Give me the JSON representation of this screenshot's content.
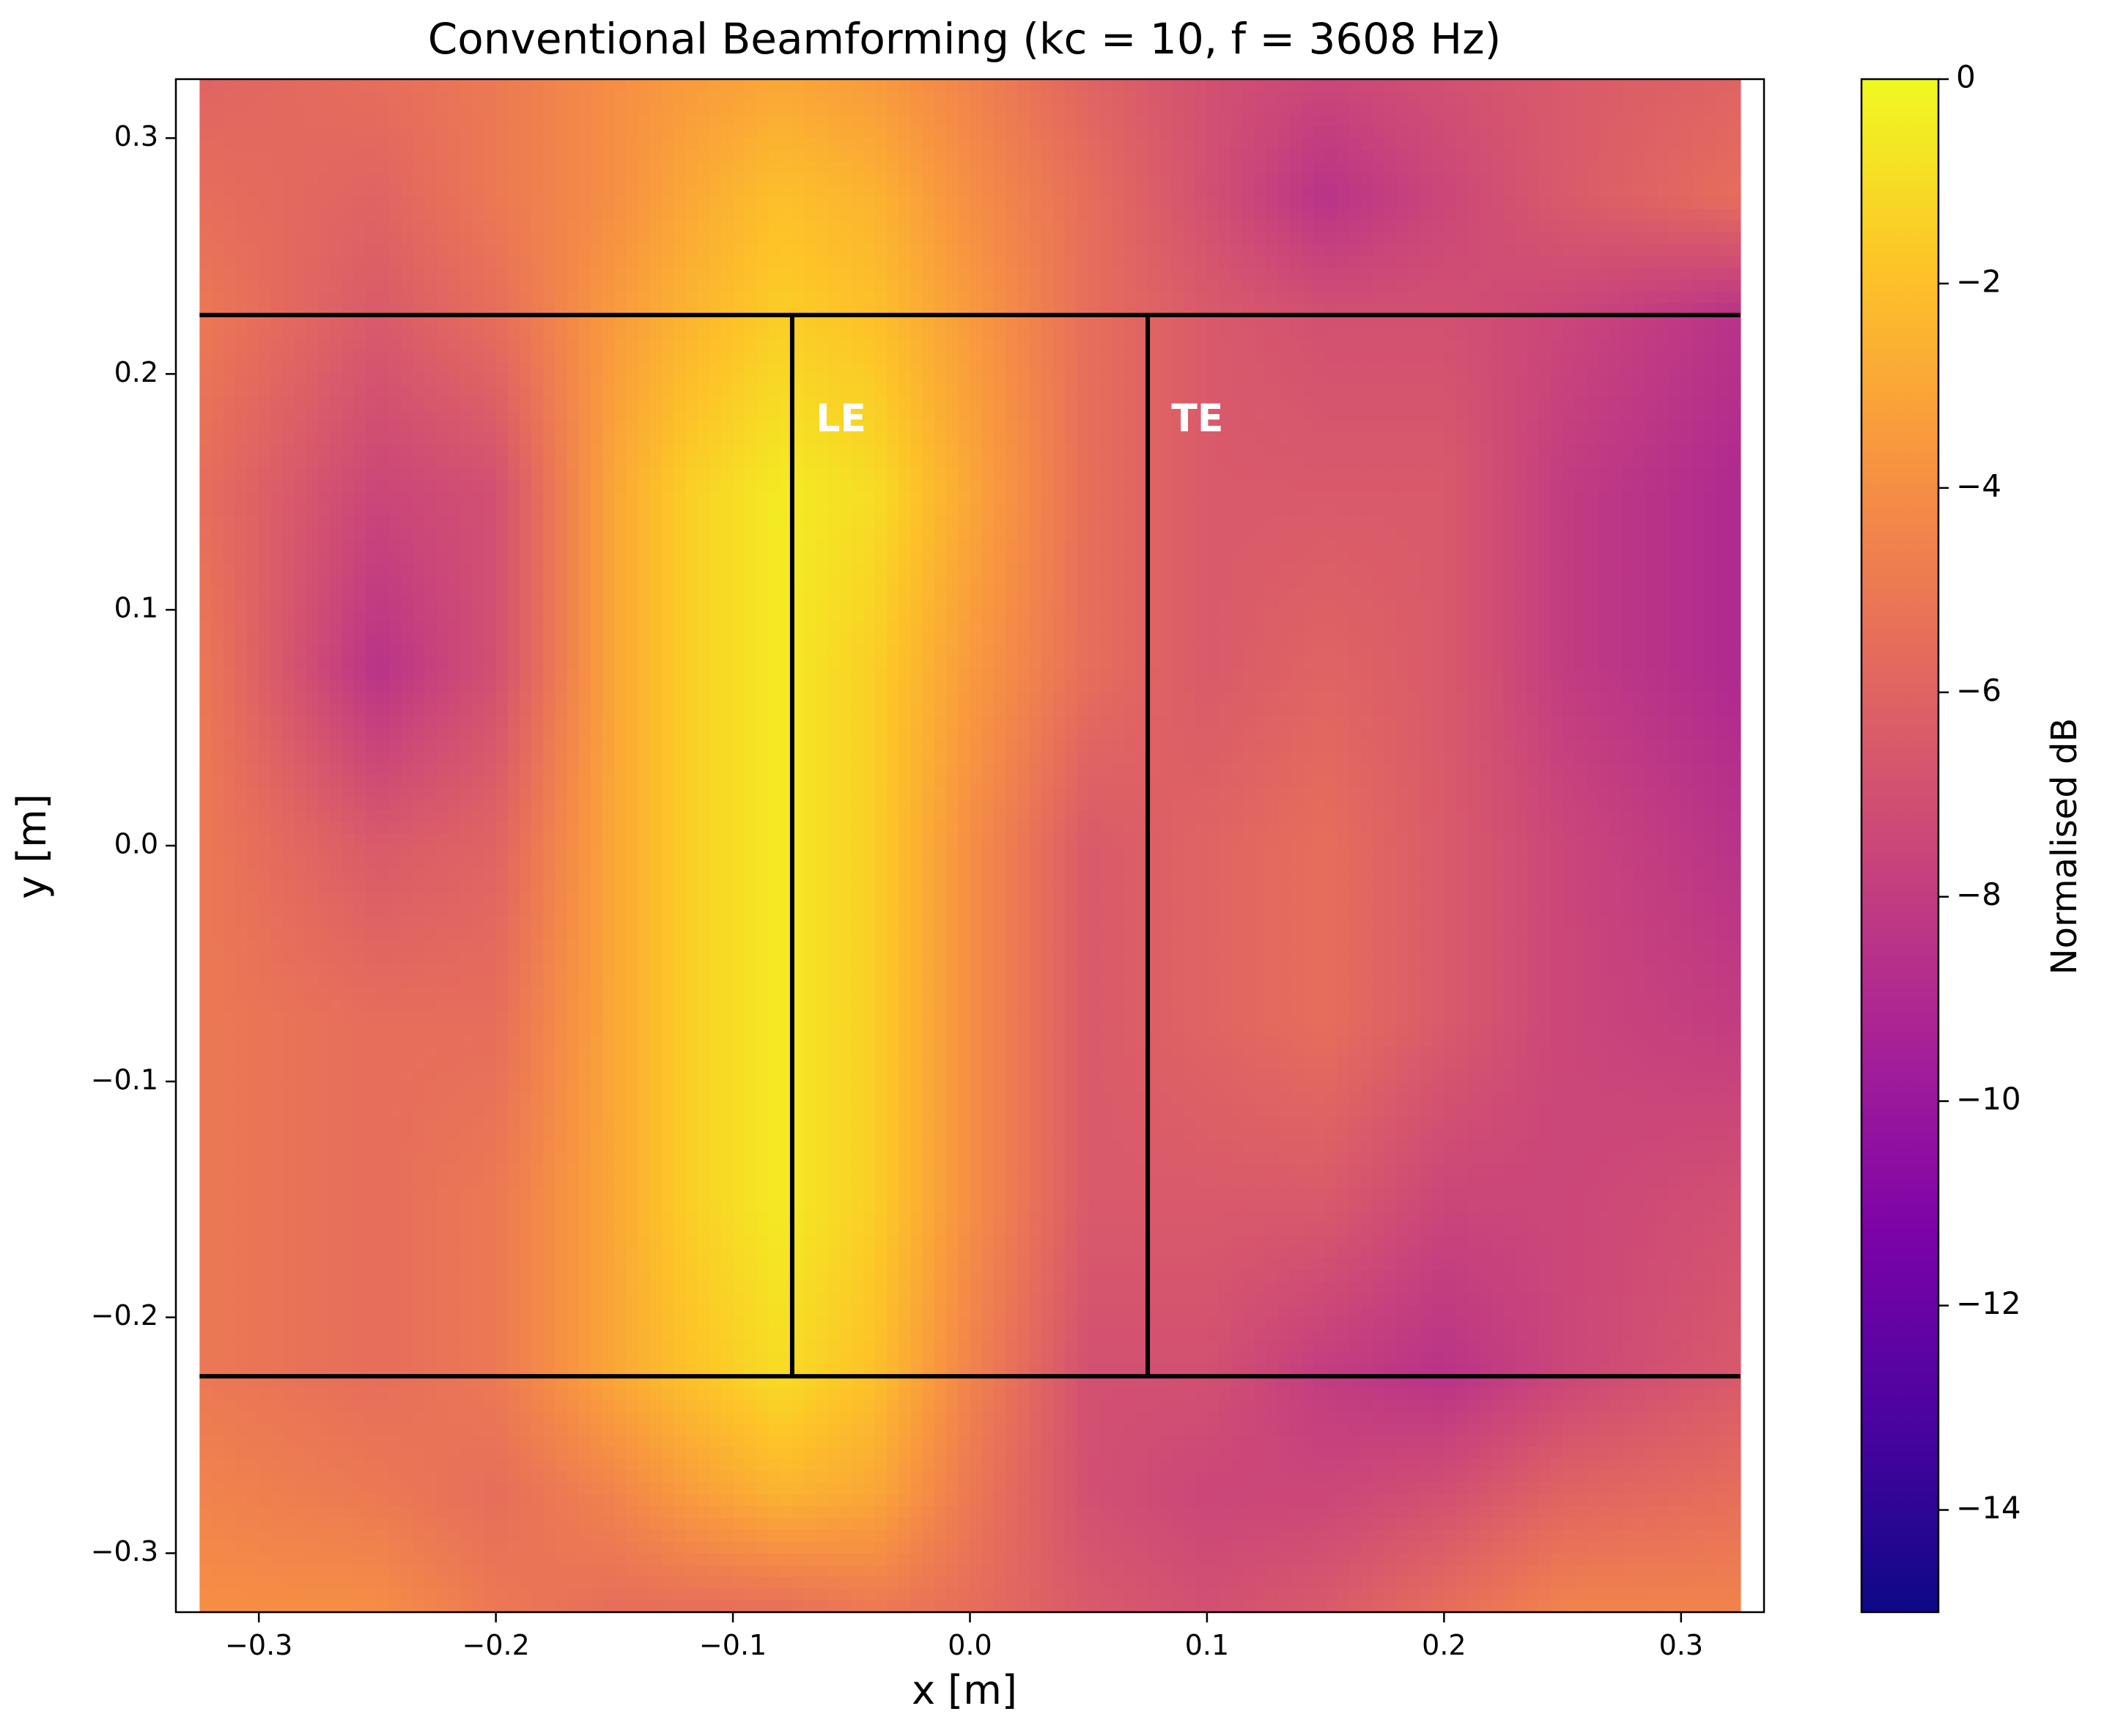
{
  "chart_data": {
    "type": "heatmap",
    "title": "Conventional Beamforming (kc = 10, f = 3608 Hz)",
    "xlabel": "x [m]",
    "ylabel": "y [m]",
    "xlim": [
      -0.335,
      0.335
    ],
    "ylim": [
      -0.325,
      0.325
    ],
    "data_extent": {
      "x": [
        -0.325,
        0.325
      ],
      "y": [
        -0.325,
        0.325
      ]
    },
    "xticks": [
      -0.3,
      -0.2,
      -0.1,
      0.0,
      0.1,
      0.2,
      0.3
    ],
    "xtick_labels": [
      "−0.3",
      "−0.2",
      "−0.1",
      "0.0",
      "0.1",
      "0.2",
      "0.3"
    ],
    "yticks": [
      0.3,
      0.2,
      0.1,
      0.0,
      -0.1,
      -0.2,
      -0.3
    ],
    "ytick_labels": [
      "0.3",
      "0.2",
      "0.1",
      "0.0",
      "−0.1",
      "−0.2",
      "−0.3"
    ],
    "colormap": "plasma",
    "colorbar": {
      "label": "Normalised dB",
      "range": [
        -15,
        0
      ],
      "ticks": [
        0,
        -2,
        -4,
        -6,
        -8,
        -10,
        -12,
        -14
      ],
      "tick_labels": [
        "0",
        "−2",
        "−4",
        "−6",
        "−8",
        "−10",
        "−12",
        "−14"
      ]
    },
    "field_description": "vertical high-level band near x = -0.08 m; weaker lobes elsewhere",
    "levels_grid": {
      "x": [
        -0.325,
        -0.25,
        -0.2,
        -0.15,
        -0.12,
        -0.08,
        -0.04,
        0.0,
        0.05,
        0.1,
        0.15,
        0.2,
        0.25,
        0.325
      ],
      "y": [
        0.325,
        0.275,
        0.225,
        0.15,
        0.075,
        0.0,
        -0.075,
        -0.15,
        -0.225,
        -0.275,
        -0.325
      ],
      "z": [
        [
          -6.0,
          -5.5,
          -5.0,
          -4.0,
          -3.5,
          -3.0,
          -3.5,
          -4.5,
          -6.0,
          -7.0,
          -7.5,
          -7.0,
          -6.5,
          -6.0
        ],
        [
          -5.5,
          -6.0,
          -5.0,
          -4.0,
          -3.0,
          -2.0,
          -2.5,
          -4.0,
          -5.5,
          -7.0,
          -8.5,
          -7.5,
          -6.5,
          -5.5
        ],
        [
          -5.0,
          -6.5,
          -5.5,
          -3.5,
          -2.5,
          -1.5,
          -2.0,
          -3.5,
          -5.5,
          -6.5,
          -7.0,
          -7.0,
          -7.5,
          -8.5
        ],
        [
          -5.5,
          -7.5,
          -7.0,
          -3.0,
          -1.5,
          -0.5,
          -1.0,
          -3.0,
          -5.5,
          -6.5,
          -6.5,
          -6.5,
          -8.0,
          -9.0
        ],
        [
          -5.0,
          -8.5,
          -7.0,
          -3.0,
          -1.5,
          -0.5,
          -1.5,
          -3.5,
          -5.5,
          -6.5,
          -6.0,
          -6.5,
          -8.0,
          -9.0
        ],
        [
          -5.0,
          -6.5,
          -6.0,
          -3.0,
          -1.5,
          -0.5,
          -1.5,
          -4.0,
          -6.5,
          -6.0,
          -5.5,
          -6.5,
          -7.5,
          -8.5
        ],
        [
          -5.0,
          -5.5,
          -5.5,
          -3.0,
          -1.5,
          -0.5,
          -1.5,
          -4.0,
          -6.5,
          -6.0,
          -5.5,
          -6.5,
          -7.5,
          -8.0
        ],
        [
          -5.0,
          -5.5,
          -5.0,
          -3.0,
          -1.5,
          -0.5,
          -1.5,
          -4.0,
          -6.5,
          -6.5,
          -6.5,
          -7.5,
          -7.5,
          -7.0
        ],
        [
          -5.0,
          -5.5,
          -5.0,
          -3.0,
          -2.0,
          -1.0,
          -2.0,
          -4.5,
          -7.0,
          -7.0,
          -8.0,
          -8.5,
          -7.5,
          -6.5
        ],
        [
          -4.5,
          -5.0,
          -5.5,
          -4.5,
          -3.5,
          -2.5,
          -3.0,
          -5.0,
          -7.0,
          -7.5,
          -7.5,
          -7.0,
          -6.0,
          -5.5
        ],
        [
          -4.0,
          -4.0,
          -5.0,
          -5.5,
          -5.5,
          -5.5,
          -5.0,
          -5.5,
          -6.5,
          -7.0,
          -6.5,
          -5.5,
          -4.5,
          -4.5
        ]
      ]
    },
    "overlay_lines": [
      {
        "name": "span-top",
        "x": [
          -0.325,
          0.325
        ],
        "y": [
          0.225,
          0.225
        ]
      },
      {
        "name": "span-bottom",
        "x": [
          -0.325,
          0.325
        ],
        "y": [
          -0.225,
          -0.225
        ]
      },
      {
        "name": "leading-edge",
        "x": [
          -0.075,
          -0.075
        ],
        "y": [
          -0.225,
          0.225
        ]
      },
      {
        "name": "trailing-edge",
        "x": [
          0.075,
          0.075
        ],
        "y": [
          -0.225,
          0.225
        ]
      }
    ],
    "annotations": [
      {
        "text": "LE",
        "x": -0.065,
        "y": 0.18,
        "color": "#ffffff"
      },
      {
        "text": "TE",
        "x": 0.085,
        "y": 0.18,
        "color": "#ffffff"
      }
    ]
  }
}
